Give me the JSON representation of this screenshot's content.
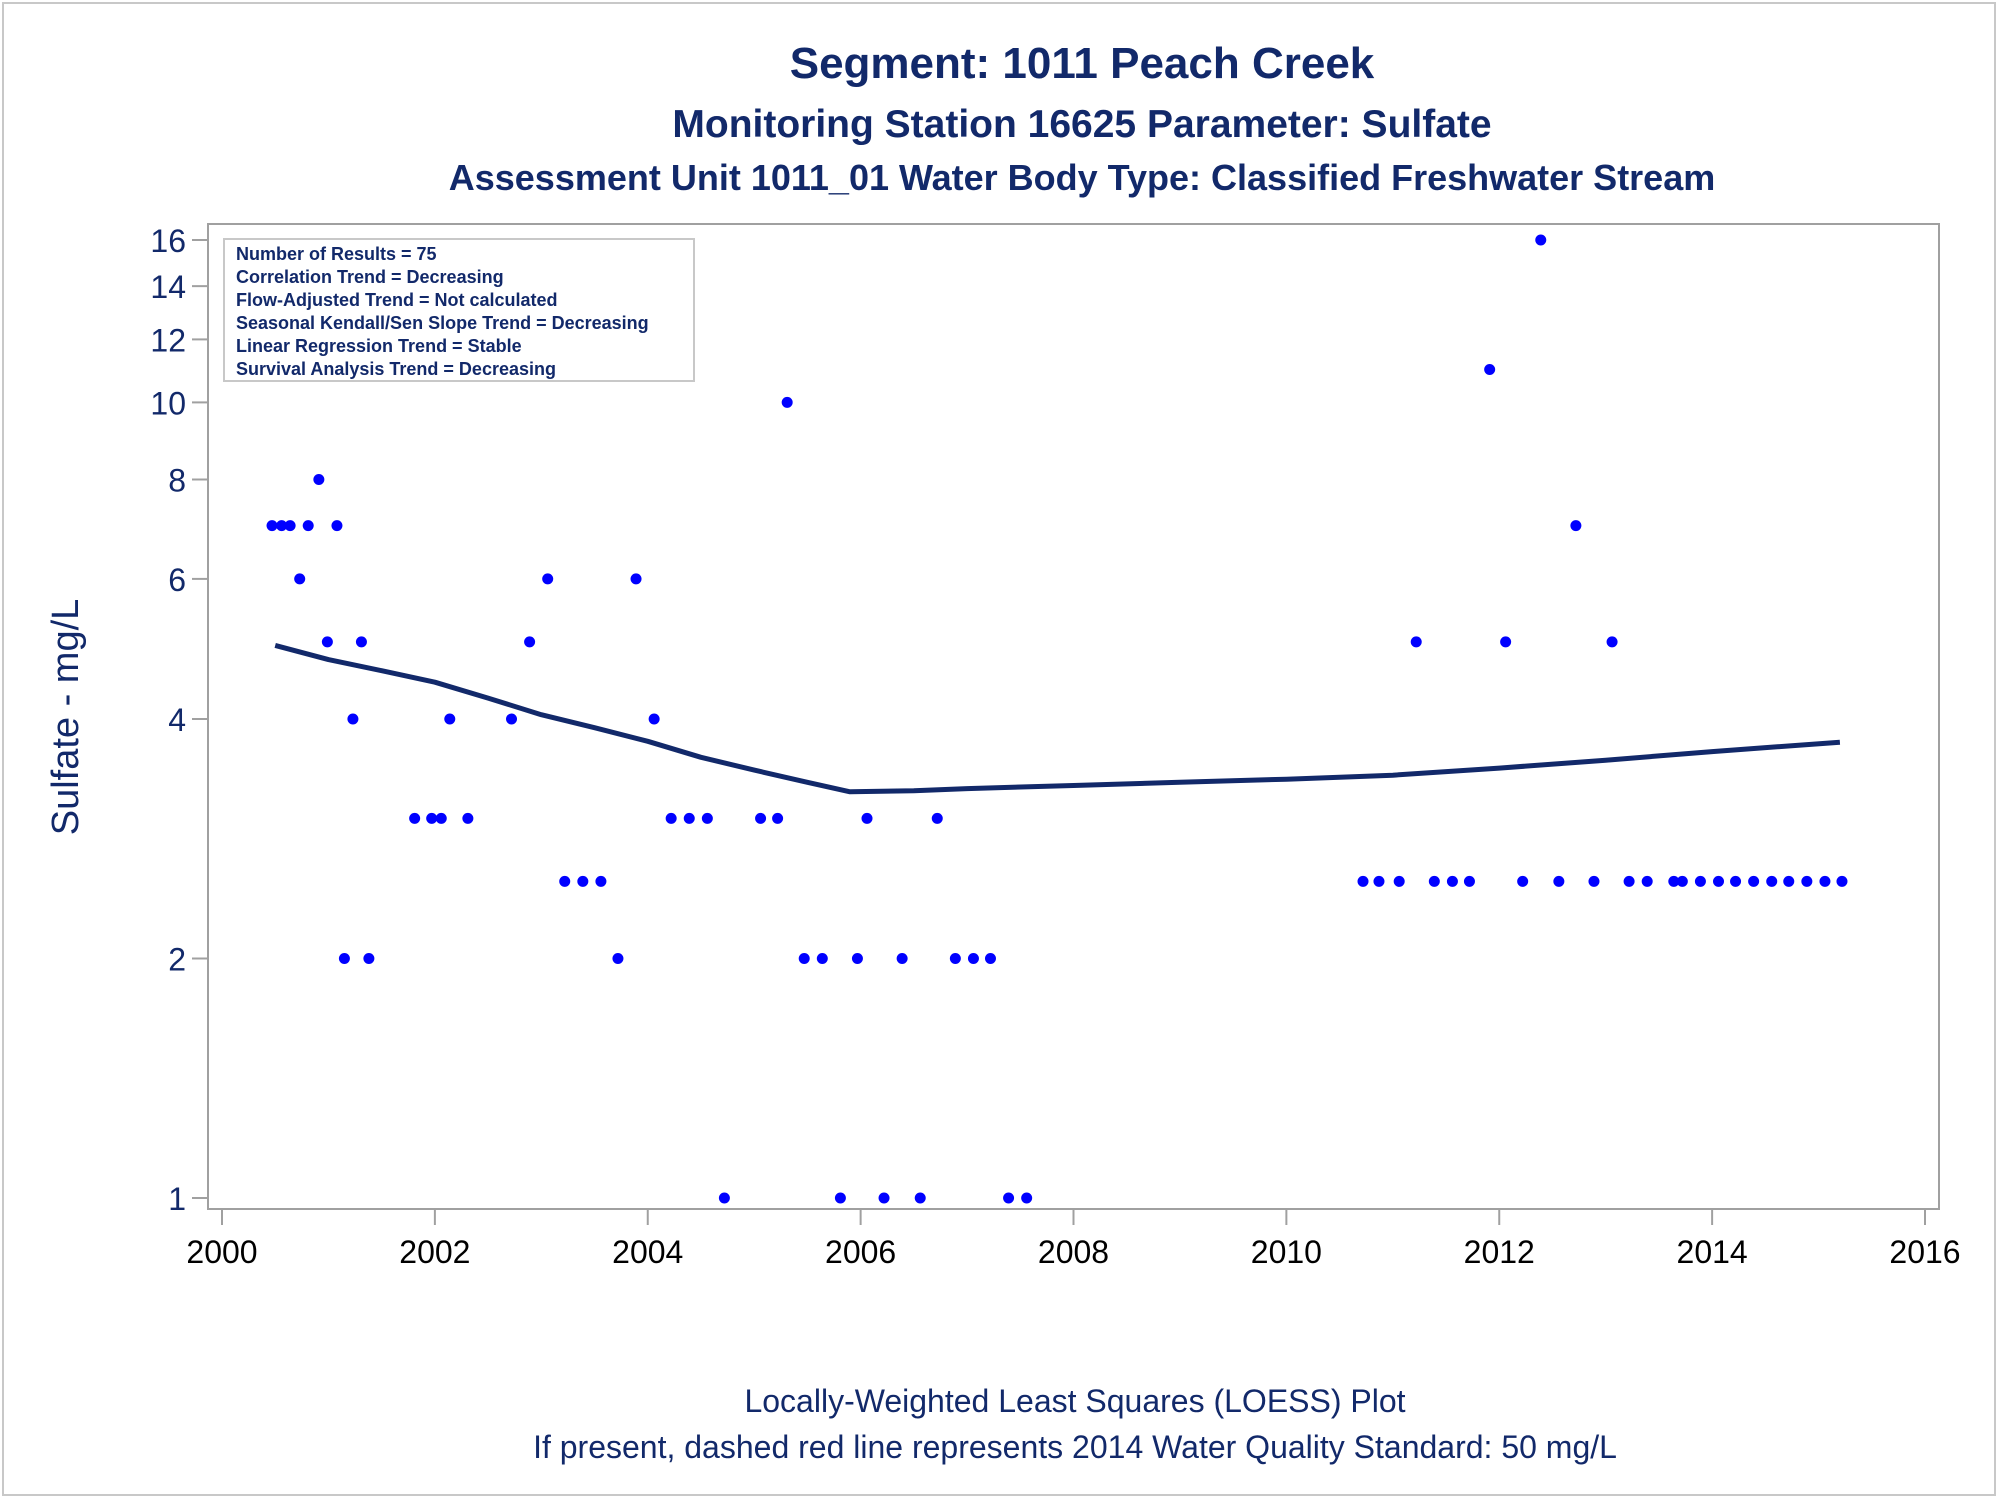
{
  "chart_data": {
    "type": "scatter",
    "title": "Segment: 1011  Peach Creek",
    "subtitle": "Monitoring Station 16625 Parameter: Sulfate",
    "subtitle2": "Assessment Unit 1011_01   Water Body Type: Classified Freshwater Stream",
    "ylabel": "Sulfate - mg/L",
    "xlabel": "",
    "yscale": "log",
    "xlim": [
      2000,
      2016
    ],
    "ylim": [
      0.95,
      17.5
    ],
    "x_ticks": [
      "2000",
      "2002",
      "2004",
      "2006",
      "2008",
      "2010",
      "2012",
      "2014",
      "2016"
    ],
    "y_ticks": [
      {
        "label": "1",
        "value": 1
      },
      {
        "label": "2",
        "value": 2
      },
      {
        "label": "4",
        "value": 4
      },
      {
        "label": "6",
        "value": 6
      },
      {
        "label": "8",
        "value": 8
      },
      {
        "label": "10",
        "value": 10
      },
      {
        "label": "12",
        "value": 12
      },
      {
        "label": "14",
        "value": 14
      },
      {
        "label": "16",
        "value": 16
      }
    ],
    "info_box": [
      "Number of Results = 75",
      "Correlation Trend = Decreasing",
      "Flow-Adjusted Trend = Not calculated",
      "Seasonal Kendall/Sen Slope Trend = Decreasing",
      "Linear Regression Trend = Stable",
      "Survival Analysis Trend = Decreasing"
    ],
    "footnote1": "Locally-Weighted Least Squares (LOESS) Plot",
    "footnote2": "If present, dashed red line represents 2014 Water Quality Standard: 50    mg/L",
    "legend": "none",
    "grid": false,
    "colors": {
      "points": "#0000ff",
      "loess": "#12296a",
      "text": "#12296a",
      "axis": "#a0a0a0"
    },
    "points": [
      {
        "x": 2000.47,
        "y": 7
      },
      {
        "x": 2000.56,
        "y": 7
      },
      {
        "x": 2000.64,
        "y": 7
      },
      {
        "x": 2000.73,
        "y": 6
      },
      {
        "x": 2000.81,
        "y": 7
      },
      {
        "x": 2000.91,
        "y": 8
      },
      {
        "x": 2000.99,
        "y": 5
      },
      {
        "x": 2001.08,
        "y": 7
      },
      {
        "x": 2001.15,
        "y": 2
      },
      {
        "x": 2001.23,
        "y": 4
      },
      {
        "x": 2001.31,
        "y": 5
      },
      {
        "x": 2001.38,
        "y": 2
      },
      {
        "x": 2001.81,
        "y": 3
      },
      {
        "x": 2001.97,
        "y": 3
      },
      {
        "x": 2002.06,
        "y": 3
      },
      {
        "x": 2002.14,
        "y": 4
      },
      {
        "x": 2002.31,
        "y": 3
      },
      {
        "x": 2002.72,
        "y": 4
      },
      {
        "x": 2002.89,
        "y": 5
      },
      {
        "x": 2003.06,
        "y": 6
      },
      {
        "x": 2003.22,
        "y": 2.5
      },
      {
        "x": 2003.39,
        "y": 2.5
      },
      {
        "x": 2003.56,
        "y": 2.5
      },
      {
        "x": 2003.72,
        "y": 2
      },
      {
        "x": 2003.89,
        "y": 6
      },
      {
        "x": 2004.06,
        "y": 4
      },
      {
        "x": 2004.22,
        "y": 3
      },
      {
        "x": 2004.39,
        "y": 3
      },
      {
        "x": 2004.56,
        "y": 3
      },
      {
        "x": 2004.72,
        "y": 1
      },
      {
        "x": 2005.06,
        "y": 3
      },
      {
        "x": 2005.22,
        "y": 3
      },
      {
        "x": 2005.31,
        "y": 10
      },
      {
        "x": 2005.47,
        "y": 2
      },
      {
        "x": 2005.64,
        "y": 2
      },
      {
        "x": 2005.81,
        "y": 1
      },
      {
        "x": 2005.97,
        "y": 2
      },
      {
        "x": 2006.06,
        "y": 3
      },
      {
        "x": 2006.22,
        "y": 1
      },
      {
        "x": 2006.39,
        "y": 2
      },
      {
        "x": 2006.56,
        "y": 1
      },
      {
        "x": 2006.72,
        "y": 3
      },
      {
        "x": 2006.89,
        "y": 2
      },
      {
        "x": 2007.06,
        "y": 2
      },
      {
        "x": 2007.22,
        "y": 2
      },
      {
        "x": 2007.39,
        "y": 1
      },
      {
        "x": 2007.56,
        "y": 1
      },
      {
        "x": 2010.72,
        "y": 2.5
      },
      {
        "x": 2010.87,
        "y": 2.5
      },
      {
        "x": 2011.06,
        "y": 2.5
      },
      {
        "x": 2011.22,
        "y": 5
      },
      {
        "x": 2011.39,
        "y": 2.5
      },
      {
        "x": 2011.56,
        "y": 2.5
      },
      {
        "x": 2011.72,
        "y": 2.5
      },
      {
        "x": 2011.91,
        "y": 11
      },
      {
        "x": 2012.06,
        "y": 5
      },
      {
        "x": 2012.22,
        "y": 2.5
      },
      {
        "x": 2012.39,
        "y": 16
      },
      {
        "x": 2012.56,
        "y": 2.5
      },
      {
        "x": 2012.72,
        "y": 7
      },
      {
        "x": 2012.89,
        "y": 2.5
      },
      {
        "x": 2013.06,
        "y": 5
      },
      {
        "x": 2013.22,
        "y": 2.5
      },
      {
        "x": 2013.39,
        "y": 2.5
      },
      {
        "x": 2013.64,
        "y": 2.5
      },
      {
        "x": 2013.72,
        "y": 2.5
      },
      {
        "x": 2013.89,
        "y": 2.5
      },
      {
        "x": 2014.06,
        "y": 2.5
      },
      {
        "x": 2014.22,
        "y": 2.5
      },
      {
        "x": 2014.39,
        "y": 2.5
      },
      {
        "x": 2014.56,
        "y": 2.5
      },
      {
        "x": 2014.72,
        "y": 2.5
      },
      {
        "x": 2014.89,
        "y": 2.5
      },
      {
        "x": 2015.06,
        "y": 2.5
      },
      {
        "x": 2015.22,
        "y": 2.5
      }
    ],
    "loess": [
      {
        "x": 2000.5,
        "y": 4.95
      },
      {
        "x": 2001,
        "y": 4.75
      },
      {
        "x": 2001.5,
        "y": 4.6
      },
      {
        "x": 2002,
        "y": 4.45
      },
      {
        "x": 2002.5,
        "y": 4.25
      },
      {
        "x": 2003,
        "y": 4.05
      },
      {
        "x": 2003.5,
        "y": 3.9
      },
      {
        "x": 2004,
        "y": 3.75
      },
      {
        "x": 2004.5,
        "y": 3.58
      },
      {
        "x": 2005,
        "y": 3.45
      },
      {
        "x": 2005.5,
        "y": 3.33
      },
      {
        "x": 2005.9,
        "y": 3.24
      },
      {
        "x": 2006.5,
        "y": 3.25
      },
      {
        "x": 2007,
        "y": 3.27
      },
      {
        "x": 2008,
        "y": 3.3
      },
      {
        "x": 2009,
        "y": 3.33
      },
      {
        "x": 2010,
        "y": 3.36
      },
      {
        "x": 2011,
        "y": 3.4
      },
      {
        "x": 2012,
        "y": 3.47
      },
      {
        "x": 2013,
        "y": 3.55
      },
      {
        "x": 2014,
        "y": 3.64
      },
      {
        "x": 2015.2,
        "y": 3.74
      }
    ]
  }
}
